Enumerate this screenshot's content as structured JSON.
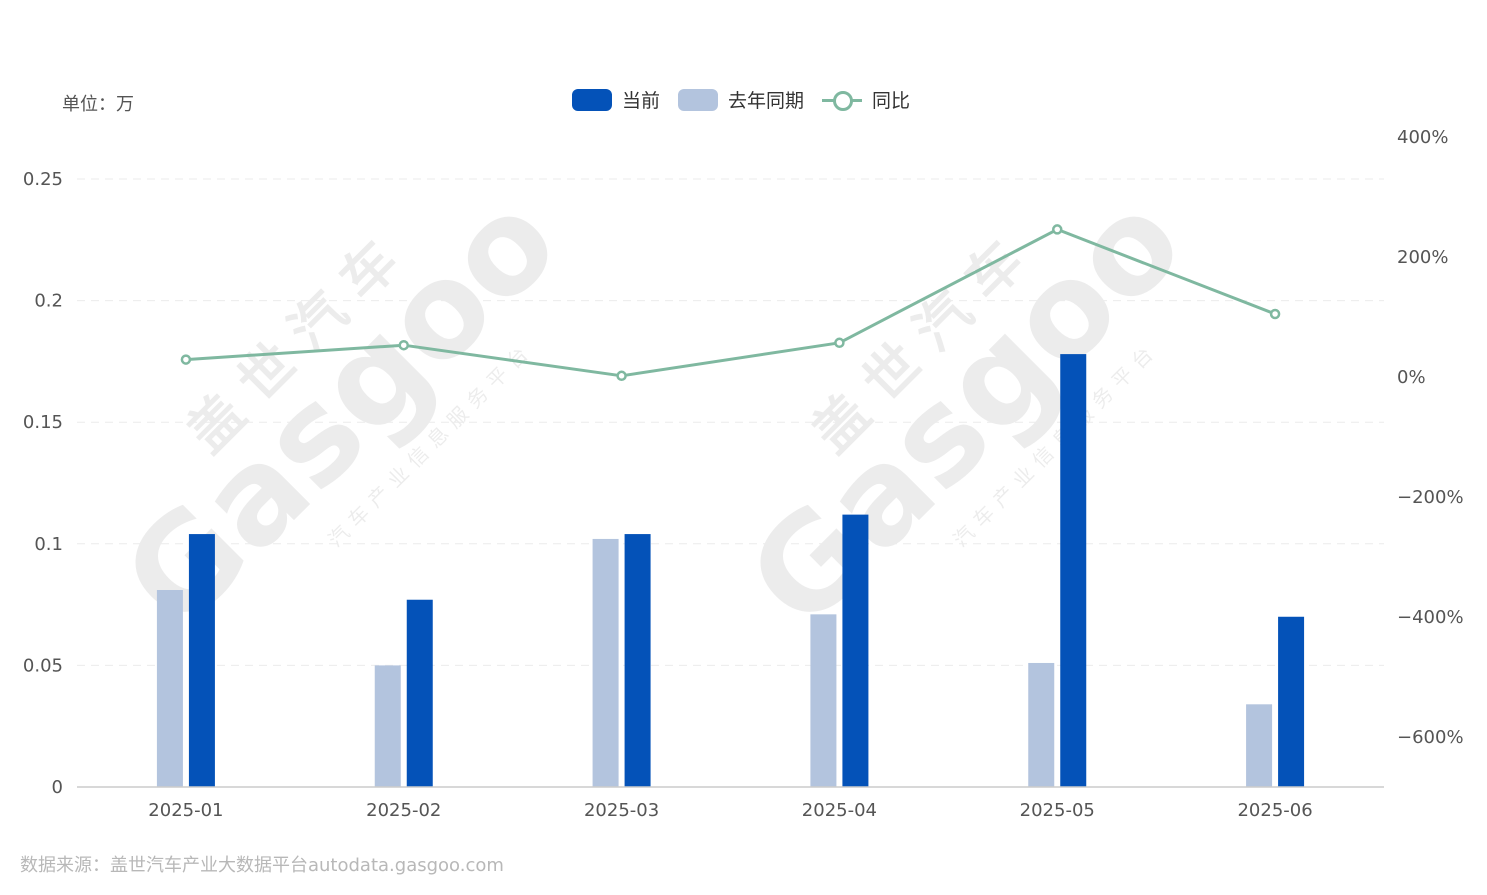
{
  "unit_label": "单位：万",
  "legend": {
    "current": "当前",
    "last_year": "去年同期",
    "yoy": "同比"
  },
  "source": "数据来源：盖世汽车产业大数据平台autodata.gasgoo.com",
  "watermark": {
    "brand": "Gasgoo",
    "name_cn": "盖世汽车",
    "tagline": "汽车产业信息服务平台"
  },
  "colors": {
    "current": "#0452b8",
    "last_year": "#b3c4de",
    "yoy": "#7fb8a0",
    "grid": "#ebebeb",
    "axis_text": "#555555"
  },
  "chart_data": {
    "type": "bar",
    "categories": [
      "2025-01",
      "2025-02",
      "2025-03",
      "2025-04",
      "2025-05",
      "2025-06"
    ],
    "series": [
      {
        "name": "去年同期",
        "type": "bar",
        "axis": "left",
        "values": [
          0.081,
          0.05,
          0.102,
          0.071,
          0.051,
          0.034
        ]
      },
      {
        "name": "当前",
        "type": "bar",
        "axis": "left",
        "values": [
          0.104,
          0.077,
          0.104,
          0.112,
          0.178,
          0.07
        ]
      },
      {
        "name": "同比",
        "type": "line",
        "axis": "right",
        "values": [
          29,
          53,
          2,
          57,
          246,
          105
        ]
      }
    ],
    "y_left": {
      "min": 0,
      "max": 0.25,
      "ticks": [
        0,
        0.05,
        0.1,
        0.15,
        0.2,
        0.25
      ],
      "tick_labels": [
        "0",
        "0.05",
        "0.1",
        "0.15",
        "0.2",
        "0.25"
      ]
    },
    "y_right": {
      "min": -700,
      "max": 400,
      "ticks": [
        -600,
        -400,
        -200,
        0,
        200,
        400
      ],
      "tick_labels": [
        "−600%",
        "−400%",
        "−200%",
        "0%",
        "200%",
        "400%"
      ]
    },
    "grid": true,
    "legend_position": "top-center"
  }
}
